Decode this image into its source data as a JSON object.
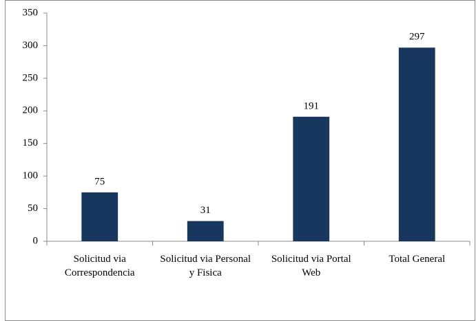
{
  "chart_data": {
    "type": "bar",
    "categories": [
      "Solicitud via Correspondencia",
      "Solicitud via Personal y Fisica",
      "Solicitud via Portal Web",
      "Total General"
    ],
    "values": [
      75,
      31,
      191,
      297
    ],
    "color": "#17375e",
    "ylim": [
      0,
      350
    ],
    "yticks": [
      0,
      50,
      100,
      150,
      200,
      250,
      300,
      350
    ],
    "grid": false
  }
}
